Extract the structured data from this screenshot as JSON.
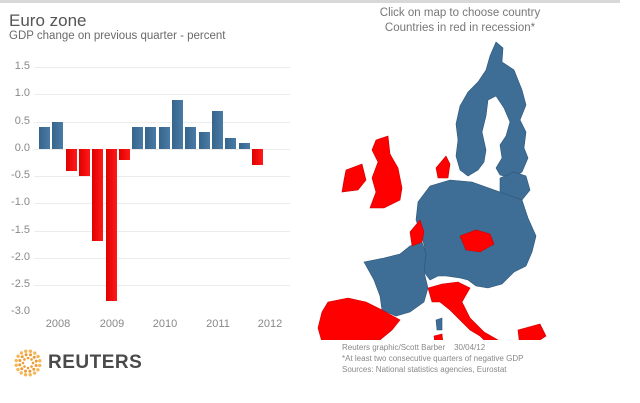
{
  "header": {
    "title": "Euro zone",
    "subtitle": "GDP change on previous quarter - percent"
  },
  "map": {
    "instruction": "Click on map to choose country",
    "legend_note": "Countries in red in recession*",
    "colors": {
      "recession": "#ff0000",
      "no_recession": "#3e6e96"
    },
    "recession_countries": [
      "Ireland",
      "United Kingdom",
      "Belgium",
      "Netherlands",
      "Denmark",
      "Czech Republic",
      "Italy",
      "Spain",
      "Portugal",
      "Slovenia",
      "Greece",
      "Cyprus",
      "Malta"
    ],
    "credit": "Reuters graphic/Scott Barber",
    "date": "30/04/12",
    "footnote": "*At least two consecutive quarters of negative GDP",
    "sources": "Sources: National statistics agencies, Eurostat"
  },
  "logo": {
    "text": "REUTERS"
  },
  "chart_data": {
    "type": "bar",
    "title": "Euro zone",
    "subtitle": "GDP change on previous quarter - percent",
    "xlabel": "",
    "ylabel": "percent",
    "ylim": [
      -3.0,
      1.5
    ],
    "yticks": [
      "1.5",
      "1.0",
      "0.5",
      "0.0",
      "-0.5",
      "-1.0",
      "-1.5",
      "-2.0",
      "-2.5",
      "-3.0"
    ],
    "xtick_labels": [
      "2008",
      "2009",
      "2010",
      "2011",
      "2012"
    ],
    "grid": true,
    "legend": null,
    "categories": [
      "2008 Q1",
      "2008 Q2",
      "2008 Q3",
      "2008 Q4",
      "2009 Q1",
      "2009 Q2",
      "2009 Q3",
      "2009 Q4",
      "2010 Q1",
      "2010 Q2",
      "2010 Q3",
      "2010 Q4",
      "2011 Q1",
      "2011 Q2",
      "2011 Q3",
      "2011 Q4",
      "2012 Q1"
    ],
    "values": [
      0.4,
      0.5,
      -0.4,
      -0.5,
      -1.7,
      -2.8,
      -0.2,
      0.4,
      0.4,
      0.4,
      0.9,
      0.4,
      0.3,
      0.7,
      0.2,
      0.1,
      -0.3
    ],
    "colors": {
      "positive": "#3e6e96",
      "negative": "#ff0000"
    }
  }
}
